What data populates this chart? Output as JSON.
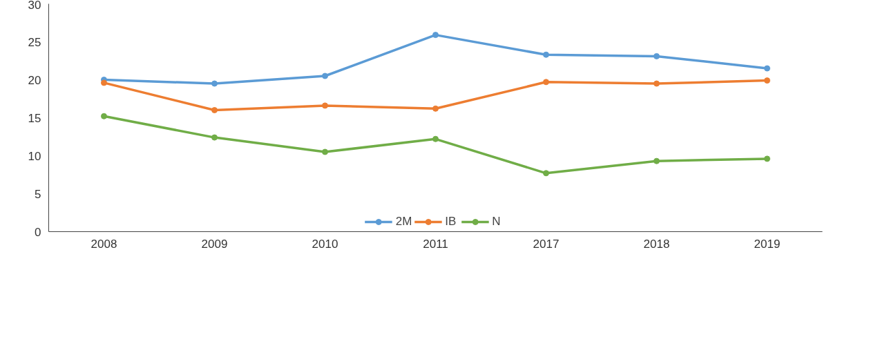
{
  "chart_data": {
    "type": "line",
    "categories": [
      "2008",
      "2009",
      "2010",
      "2011",
      "2017",
      "2018",
      "2019"
    ],
    "series": [
      {
        "name": "2M",
        "color": "#5b9bd5",
        "values": [
          20.0,
          19.5,
          20.5,
          25.9,
          23.3,
          23.1,
          21.5
        ]
      },
      {
        "name": "IB",
        "color": "#ed7d31",
        "values": [
          19.6,
          16.0,
          16.6,
          16.2,
          19.7,
          19.5,
          19.9
        ]
      },
      {
        "name": "N",
        "color": "#70ad47",
        "values": [
          15.2,
          12.4,
          10.5,
          12.2,
          7.7,
          9.3,
          9.6
        ]
      }
    ],
    "ylim": [
      0,
      30
    ],
    "yticks": [
      0,
      5,
      10,
      15,
      20,
      25,
      30
    ],
    "grid": false,
    "legend": "bottom",
    "marker": "circle",
    "line_style": "solid"
  }
}
